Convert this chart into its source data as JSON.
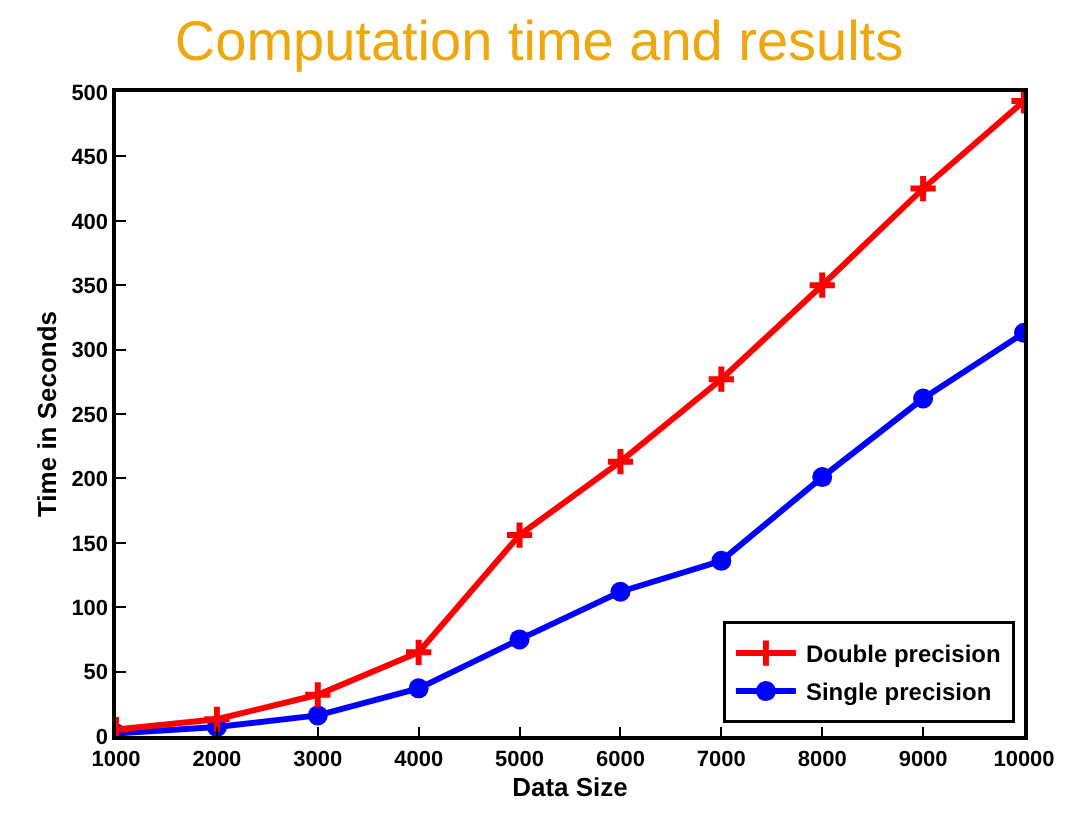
{
  "chart_data": {
    "type": "line",
    "title": "Computation time and results",
    "xlabel": "Data Size",
    "ylabel": "Time in Seconds",
    "x": [
      1000,
      2000,
      3000,
      4000,
      5000,
      6000,
      7000,
      8000,
      9000,
      10000
    ],
    "series": [
      {
        "name": "Double precision",
        "color": "#ff0000",
        "marker": "cross",
        "values": [
          5,
          13,
          32,
          65,
          156,
          213,
          277,
          350,
          425,
          493
        ]
      },
      {
        "name": "Single precision",
        "color": "#0000ff",
        "marker": "circle",
        "values": [
          2,
          7,
          16,
          37,
          75,
          112,
          136,
          201,
          262,
          313
        ]
      }
    ],
    "xlim": [
      1000,
      10000
    ],
    "xticks": [
      1000,
      2000,
      3000,
      4000,
      5000,
      6000,
      7000,
      8000,
      9000,
      10000
    ],
    "ylim": [
      0,
      500
    ],
    "yticks": [
      0,
      50,
      100,
      150,
      200,
      250,
      300,
      350,
      400,
      450,
      500
    ],
    "grid": false,
    "legend": "bottom right",
    "line_style": "solid"
  }
}
